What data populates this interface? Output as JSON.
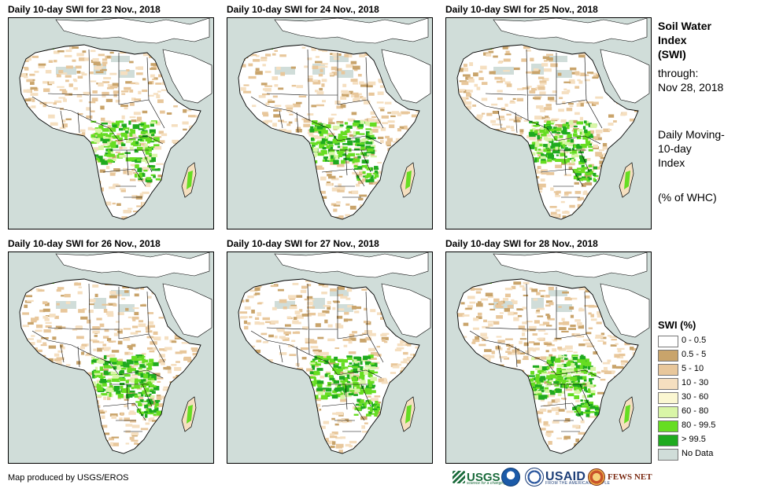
{
  "panels": [
    {
      "title": "Daily 10-day  SWI for 23 Nov., 2018",
      "wet_index": 1
    },
    {
      "title": "Daily 10-day  SWI for 24 Nov., 2018",
      "wet_index": 2
    },
    {
      "title": "Daily 10-day  SWI for 25 Nov., 2018",
      "wet_index": 3
    },
    {
      "title": "Daily 10-day  SWI for 26 Nov., 2018",
      "wet_index": 4
    },
    {
      "title": "Daily 10-day  SWI for 27 Nov., 2018",
      "wet_index": 5
    },
    {
      "title": "Daily 10-day  SWI for 28 Nov., 2018",
      "wet_index": 6
    }
  ],
  "side": {
    "title_line1": "Soil Water",
    "title_line2": "Index",
    "title_line3": "(SWI)",
    "through_label": "through:",
    "through_date": "Nov 28, 2018",
    "desc_line1": "Daily Moving-",
    "desc_line2": "10-day",
    "desc_line3": "Index",
    "units": "(% of WHC)"
  },
  "legend": {
    "title": "SWI (%)",
    "items": [
      {
        "label": "0 - 0.5",
        "color": "#ffffff"
      },
      {
        "label": "0.5 - 5",
        "color": "#c9a46b"
      },
      {
        "label": "5 - 10",
        "color": "#e8c79b"
      },
      {
        "label": "10 - 30",
        "color": "#f5dfc0"
      },
      {
        "label": "30 - 60",
        "color": "#fbf7d2"
      },
      {
        "label": "60 - 80",
        "color": "#d9f5a7"
      },
      {
        "label": "80 - 99.5",
        "color": "#66dd22"
      },
      {
        "label": "> 99.5",
        "color": "#1faa1f"
      },
      {
        "label": "No Data",
        "color": "#d0ddd9"
      }
    ]
  },
  "credit": "Map produced by USGS/EROS",
  "logos": {
    "usgs": "USGS",
    "usgs_tag": "science for a changing world",
    "usaid": "USAID",
    "usaid_tag": "FROM THE AMERICAN PEOPLE",
    "fews": "FEWS NET"
  },
  "colors": {
    "ocean": "#d0ddd9",
    "land_dry": "#ffffff",
    "border": "#000000"
  }
}
